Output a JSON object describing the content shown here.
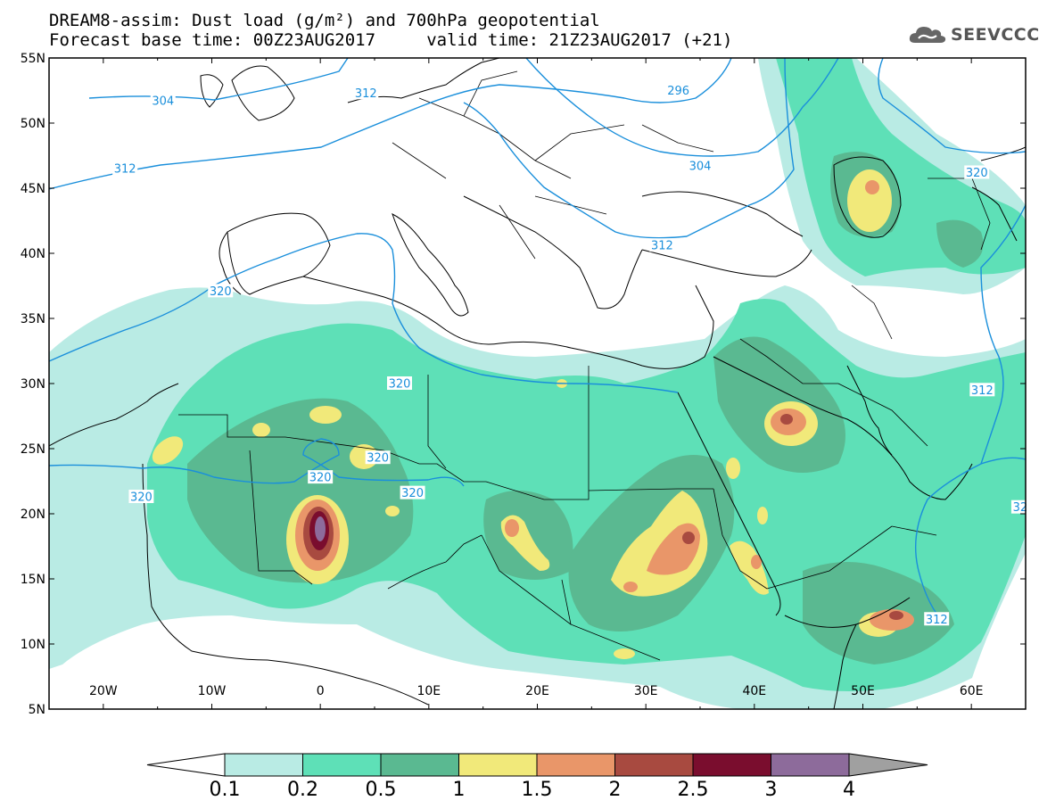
{
  "header": {
    "title_line1": "DREAM8-assim: Dust load (g/m²) and 700hPa geopotential",
    "title_line2": "Forecast base time: 00Z23AUG2017     valid time: 21Z23AUG2017 (+21)",
    "logo_text": "SEEVCCC"
  },
  "map": {
    "lon_range": [
      -25,
      65
    ],
    "lat_range": [
      5,
      55
    ],
    "lat_ticks": [
      {
        "value": 55,
        "label": "55N"
      },
      {
        "value": 50,
        "label": "50N"
      },
      {
        "value": 45,
        "label": "45N"
      },
      {
        "value": 40,
        "label": "40N"
      },
      {
        "value": 35,
        "label": "35N"
      },
      {
        "value": 30,
        "label": "30N"
      },
      {
        "value": 25,
        "label": "25N"
      },
      {
        "value": 20,
        "label": "20N"
      },
      {
        "value": 15,
        "label": "15N"
      },
      {
        "value": 10,
        "label": "10N"
      },
      {
        "value": 5,
        "label": "5N"
      }
    ],
    "lon_ticks": [
      {
        "value": -20,
        "label": "20W"
      },
      {
        "value": -10,
        "label": "10W"
      },
      {
        "value": 0,
        "label": "0"
      },
      {
        "value": 10,
        "label": "10E"
      },
      {
        "value": 20,
        "label": "20E"
      },
      {
        "value": 30,
        "label": "30E"
      },
      {
        "value": 40,
        "label": "40E"
      },
      {
        "value": 50,
        "label": "50E"
      },
      {
        "value": 60,
        "label": "60E"
      }
    ],
    "contour_color": "#1a8fdb",
    "contour_labels": [
      {
        "text": "304",
        "lon": -14.5,
        "lat": 51.7
      },
      {
        "text": "312",
        "lon": 4.2,
        "lat": 52.3
      },
      {
        "text": "296",
        "lon": 33,
        "lat": 52.5
      },
      {
        "text": "304",
        "lon": 35,
        "lat": 46.7
      },
      {
        "text": "320",
        "lon": 60.5,
        "lat": 46.2
      },
      {
        "text": "312",
        "lon": -18,
        "lat": 46.5
      },
      {
        "text": "312",
        "lon": 31.5,
        "lat": 40.6
      },
      {
        "text": "320",
        "lon": -9.2,
        "lat": 37.1
      },
      {
        "text": "320",
        "lon": 7.3,
        "lat": 30.0
      },
      {
        "text": "312",
        "lon": 61,
        "lat": 29.5
      },
      {
        "text": "320",
        "lon": 5.3,
        "lat": 24.3
      },
      {
        "text": "320",
        "lon": 0,
        "lat": 22.8
      },
      {
        "text": "320",
        "lon": -16.5,
        "lat": 21.3
      },
      {
        "text": "320",
        "lon": 8.5,
        "lat": 21.6
      },
      {
        "text": "312",
        "lon": 56.8,
        "lat": 11.9
      },
      {
        "text": "32",
        "lon": 64.5,
        "lat": 20.5
      }
    ]
  },
  "colorbar": {
    "levels": [
      "0.1",
      "0.2",
      "0.5",
      "1",
      "1.5",
      "2",
      "2.5",
      "3",
      "4"
    ],
    "colors": [
      "#b9ebe4",
      "#5ee0b7",
      "#5ab991",
      "#f1e97a",
      "#e99669",
      "#a84a40",
      "#7a0d2e",
      "#8d6b9b",
      "#a0a0a0"
    ],
    "under_color": "#ffffff"
  }
}
